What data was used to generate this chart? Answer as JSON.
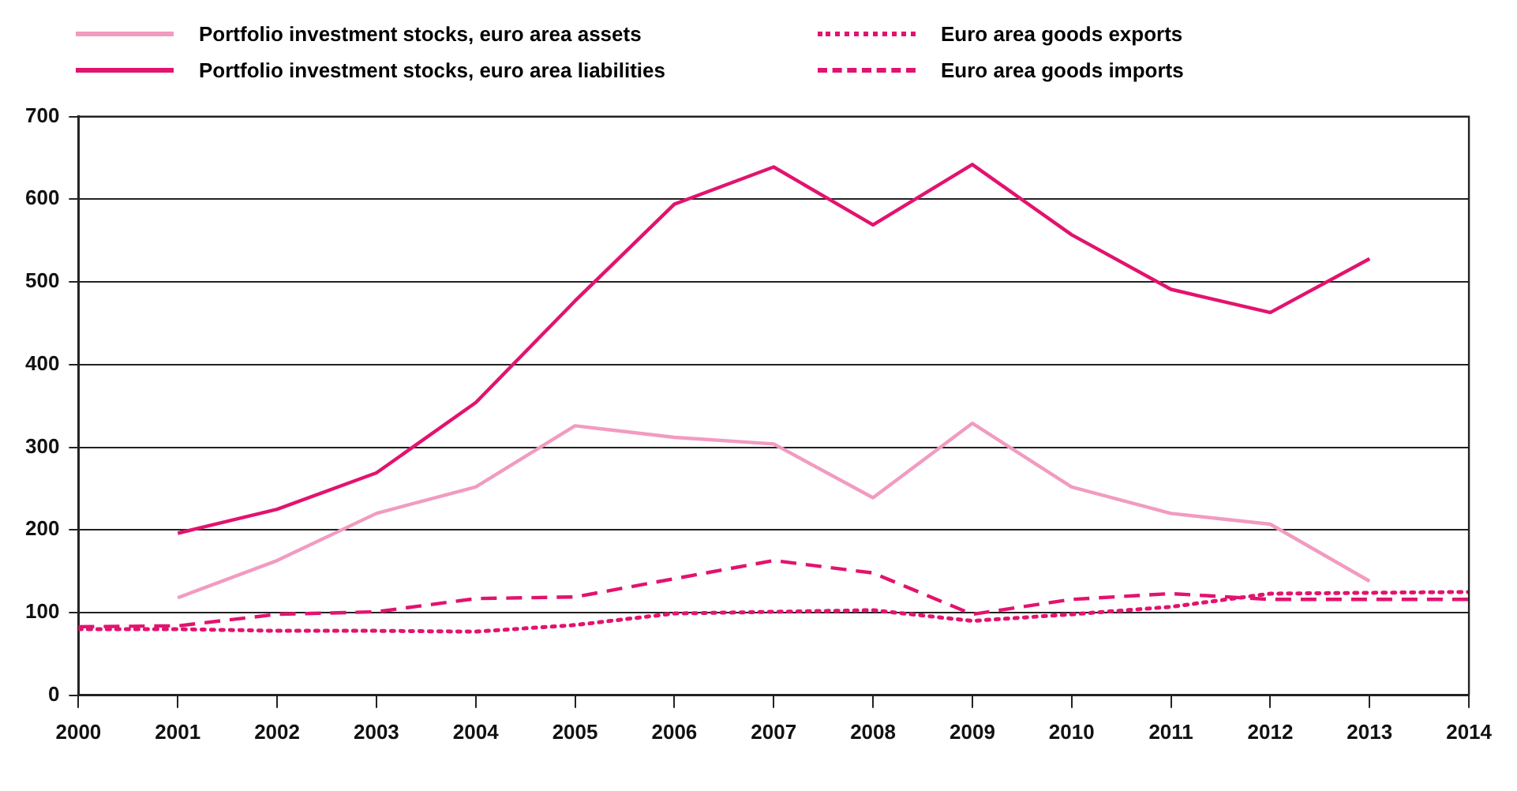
{
  "chart_data": {
    "type": "line",
    "legend": "top",
    "grid": "y",
    "marker": "none",
    "xlim": [
      2000,
      2014
    ],
    "xticks": [
      2000,
      2001,
      2002,
      2003,
      2004,
      2005,
      2006,
      2007,
      2008,
      2009,
      2010,
      2011,
      2012,
      2013,
      2014
    ],
    "ylim": [
      0,
      700
    ],
    "yticks": [
      0,
      100,
      200,
      300,
      400,
      500,
      600,
      700
    ],
    "series": [
      {
        "name": "Portfolio investment stocks, euro area assets",
        "color": "#f29bc1",
        "line_style": "solid",
        "x": [
          2001,
          2002,
          2003,
          2004,
          2005,
          2006,
          2007,
          2008,
          2009,
          2010,
          2011,
          2012,
          2013
        ],
        "values": [
          118,
          163,
          220,
          252,
          326,
          312,
          304,
          239,
          329,
          252,
          220,
          207,
          138
        ]
      },
      {
        "name": "Portfolio investment stocks, euro area liabilities",
        "color": "#e2136e",
        "line_style": "solid",
        "x": [
          2001,
          2002,
          2003,
          2004,
          2005,
          2006,
          2007,
          2008,
          2009,
          2010,
          2011,
          2012,
          2013
        ],
        "values": [
          196,
          225,
          269,
          354,
          477,
          594,
          639,
          569,
          642,
          557,
          491,
          463,
          528
        ]
      },
      {
        "name": "Euro area goods exports",
        "color": "#e2136e",
        "line_style": "dotted",
        "x": [
          2000,
          2001,
          2002,
          2003,
          2004,
          2005,
          2006,
          2007,
          2008,
          2009,
          2010,
          2011,
          2012,
          2013,
          2014
        ],
        "values": [
          80,
          80,
          78,
          78,
          77,
          85,
          99,
          101,
          103,
          90,
          98,
          107,
          123,
          124,
          125
        ]
      },
      {
        "name": "Euro area goods imports",
        "color": "#e2136e",
        "line_style": "dashed",
        "x": [
          2000,
          2001,
          2002,
          2003,
          2004,
          2005,
          2006,
          2007,
          2008,
          2009,
          2010,
          2011,
          2012,
          2013,
          2014
        ],
        "values": [
          83,
          84,
          98,
          101,
          117,
          119,
          141,
          163,
          148,
          98,
          116,
          123,
          116,
          116,
          116
        ]
      }
    ]
  }
}
